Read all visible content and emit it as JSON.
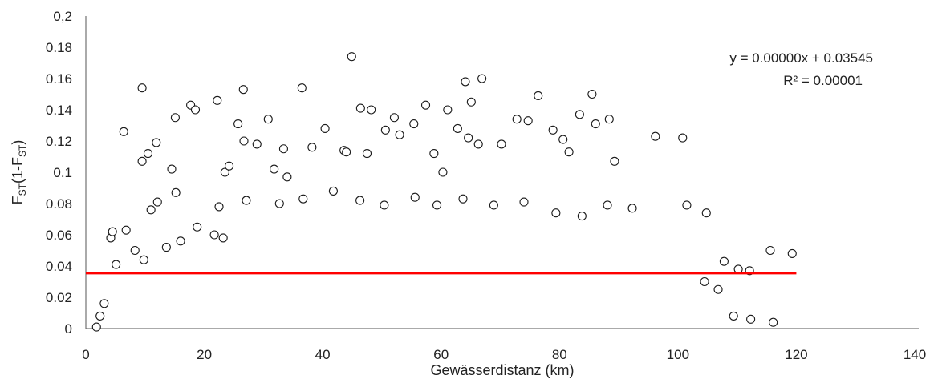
{
  "chart_data": {
    "type": "scatter",
    "xlabel": "Gewässerdistanz (km)",
    "ylabel": "F<sub>ST</sub>(1-F<sub>ST</sub>)",
    "ylabel_parts": [
      "F",
      "ST",
      "(1-F",
      "ST",
      ")"
    ],
    "xlim": [
      0,
      140
    ],
    "ylim": [
      0,
      0.2
    ],
    "x_ticks": [
      0,
      20,
      40,
      60,
      80,
      100,
      120,
      140
    ],
    "x_tick_labels": [
      "0",
      "20",
      "40",
      "60",
      "80",
      "100",
      "120",
      "140"
    ],
    "y_ticks": [
      0,
      0.02,
      0.04,
      0.06,
      0.08,
      0.1,
      0.12,
      0.14,
      0.16,
      0.18,
      0.2
    ],
    "y_tick_labels": [
      "0",
      "0.02",
      "0.04",
      "0.06",
      "0.08",
      "0.1",
      "0.12",
      "0.14",
      "0.16",
      "0.18",
      "0,2"
    ],
    "grid": false,
    "trendline": {
      "equation": "y = 0.00000x + 0.03545",
      "r_squared": "R² = 0.00001",
      "slope": 0.0,
      "intercept": 0.03545,
      "x_range": [
        0,
        120
      ],
      "color": "#ff0000"
    },
    "marker": {
      "shape": "circle",
      "fill": "#ffffff",
      "stroke": "#1a1a1a"
    },
    "points": [
      [
        44.9,
        0.174
      ],
      [
        9.5,
        0.154
      ],
      [
        36.5,
        0.154
      ],
      [
        26.6,
        0.153
      ],
      [
        66.9,
        0.16
      ],
      [
        64.1,
        0.158
      ],
      [
        76.4,
        0.149
      ],
      [
        85.5,
        0.15
      ],
      [
        22.2,
        0.146
      ],
      [
        17.7,
        0.143
      ],
      [
        18.5,
        0.14
      ],
      [
        6.4,
        0.126
      ],
      [
        30.8,
        0.134
      ],
      [
        15.1,
        0.135
      ],
      [
        46.4,
        0.141
      ],
      [
        48.2,
        0.14
      ],
      [
        57.4,
        0.143
      ],
      [
        61.1,
        0.14
      ],
      [
        65.1,
        0.145
      ],
      [
        83.4,
        0.137
      ],
      [
        88.4,
        0.134
      ],
      [
        72.8,
        0.134
      ],
      [
        74.7,
        0.133
      ],
      [
        52.1,
        0.135
      ],
      [
        11.9,
        0.119
      ],
      [
        10.5,
        0.112
      ],
      [
        9.5,
        0.107
      ],
      [
        14.5,
        0.102
      ],
      [
        15.2,
        0.087
      ],
      [
        12.1,
        0.081
      ],
      [
        11.0,
        0.076
      ],
      [
        23.5,
        0.1
      ],
      [
        24.2,
        0.104
      ],
      [
        25.7,
        0.131
      ],
      [
        26.7,
        0.12
      ],
      [
        28.9,
        0.118
      ],
      [
        33.4,
        0.115
      ],
      [
        31.8,
        0.102
      ],
      [
        34.0,
        0.097
      ],
      [
        38.2,
        0.116
      ],
      [
        40.4,
        0.128
      ],
      [
        43.6,
        0.114
      ],
      [
        44.0,
        0.113
      ],
      [
        47.5,
        0.112
      ],
      [
        50.6,
        0.127
      ],
      [
        53.0,
        0.124
      ],
      [
        55.4,
        0.131
      ],
      [
        58.8,
        0.112
      ],
      [
        60.3,
        0.1
      ],
      [
        62.8,
        0.128
      ],
      [
        64.6,
        0.122
      ],
      [
        66.3,
        0.118
      ],
      [
        70.2,
        0.118
      ],
      [
        78.9,
        0.127
      ],
      [
        80.6,
        0.121
      ],
      [
        81.6,
        0.113
      ],
      [
        86.1,
        0.131
      ],
      [
        89.3,
        0.107
      ],
      [
        96.2,
        0.123
      ],
      [
        100.8,
        0.122
      ],
      [
        21.7,
        0.06
      ],
      [
        23.2,
        0.058
      ],
      [
        22.5,
        0.078
      ],
      [
        27.1,
        0.082
      ],
      [
        32.7,
        0.08
      ],
      [
        36.7,
        0.083
      ],
      [
        41.8,
        0.088
      ],
      [
        46.3,
        0.082
      ],
      [
        50.4,
        0.079
      ],
      [
        55.6,
        0.084
      ],
      [
        59.3,
        0.079
      ],
      [
        63.7,
        0.083
      ],
      [
        68.9,
        0.079
      ],
      [
        74.0,
        0.081
      ],
      [
        79.4,
        0.074
      ],
      [
        83.8,
        0.072
      ],
      [
        88.1,
        0.079
      ],
      [
        92.3,
        0.077
      ],
      [
        101.5,
        0.079
      ],
      [
        104.8,
        0.074
      ],
      [
        115.6,
        0.05
      ],
      [
        119.3,
        0.048
      ],
      [
        112.1,
        0.037
      ],
      [
        116.1,
        0.004
      ],
      [
        112.3,
        0.006
      ],
      [
        109.4,
        0.008
      ],
      [
        106.8,
        0.025
      ],
      [
        104.5,
        0.03
      ],
      [
        107.8,
        0.043
      ],
      [
        110.2,
        0.038
      ],
      [
        1.8,
        0.001
      ],
      [
        2.4,
        0.008
      ],
      [
        3.1,
        0.016
      ],
      [
        4.2,
        0.058
      ],
      [
        4.5,
        0.062
      ],
      [
        5.1,
        0.041
      ],
      [
        6.8,
        0.063
      ],
      [
        8.3,
        0.05
      ],
      [
        9.8,
        0.044
      ],
      [
        13.6,
        0.052
      ],
      [
        16.0,
        0.056
      ],
      [
        18.8,
        0.065
      ]
    ]
  }
}
